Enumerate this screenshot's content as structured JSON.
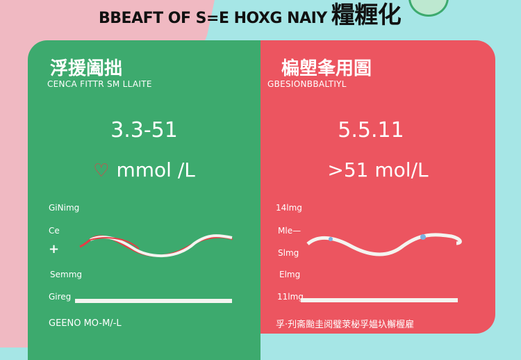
{
  "header": {
    "title_latin": "BBEAFT OF S=E HOXG NAIY",
    "title_cjk": "糧糎化"
  },
  "left_card": {
    "heading": "浮援阖拙",
    "subheading": "CENCA FITTR SM LLAITE",
    "range": "3.3-51",
    "unit": "mmol /L",
    "heart_icon": "heart-icon",
    "labels": [
      "GiNimg",
      "Ce",
      "+",
      "Semmg",
      "Gireg"
    ],
    "footer": "GEENO MO-M/-L",
    "color": "#3daa6e"
  },
  "right_card": {
    "heading": "楄塱夆用圄",
    "subheading": "GBESIONBBALTIYL",
    "range": "5.5.11",
    "unit": ">51 mol/L",
    "labels": [
      "14lmg",
      "Mle—",
      "Slmg",
      "Elmg",
      "11lmg"
    ],
    "footer": "孚·刋斋颱圭阅璧莍柲孚媪圦檞楃雇",
    "color": "#ec5560"
  }
}
